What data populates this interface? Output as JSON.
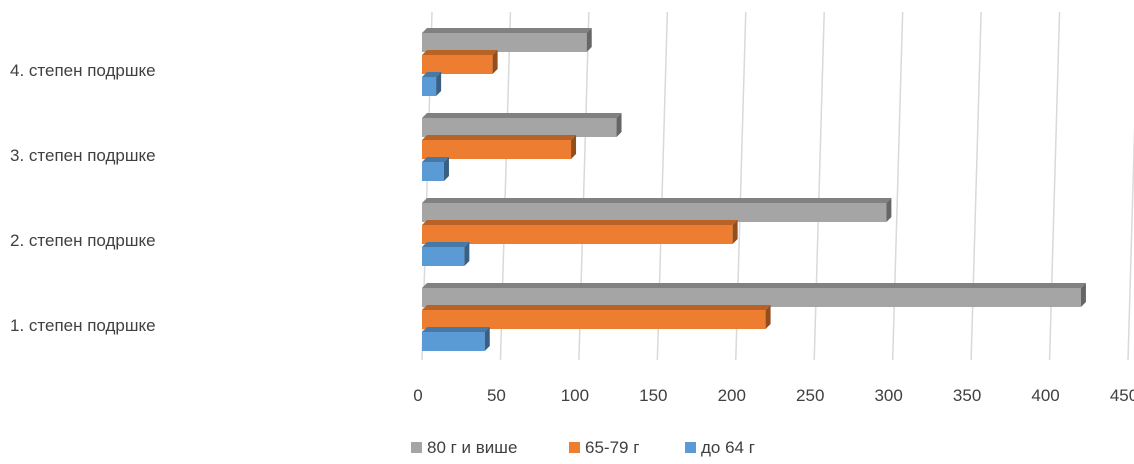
{
  "chart_data": {
    "type": "bar",
    "orientation": "horizontal",
    "style": "3d",
    "categories": [
      "4. степен подршке",
      "3. степен подршке",
      "2. степен подршке",
      "1. степен подршке"
    ],
    "series": [
      {
        "name": "80 г и више",
        "color": "#A5A5A5",
        "values": [
          105,
          124,
          296,
          420
        ]
      },
      {
        "name": "65-79 г",
        "color": "#ED7D31",
        "values": [
          45,
          95,
          198,
          219
        ]
      },
      {
        "name": "до 64 г",
        "color": "#5B9BD5",
        "values": [
          9,
          14,
          27,
          40
        ]
      }
    ],
    "xlim": [
      0,
      450
    ],
    "xticks": [
      0,
      50,
      100,
      150,
      200,
      250,
      300,
      350,
      400,
      450
    ],
    "grid": true,
    "legend_position": "bottom",
    "title": "",
    "xlabel": "",
    "ylabel": ""
  }
}
